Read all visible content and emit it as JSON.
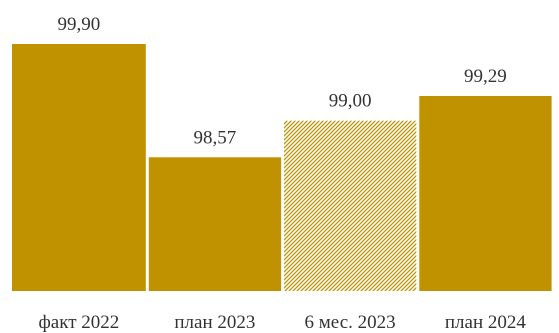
{
  "chart_data": {
    "type": "bar",
    "title": "",
    "xlabel": "",
    "ylabel": "",
    "categories": [
      "факт 2022",
      "план 2023",
      "6 мес. 2023",
      "план 2024"
    ],
    "values": [
      99.9,
      98.57,
      99.0,
      99.29
    ],
    "value_labels": [
      "99,90",
      "98,57",
      "99,00",
      "99,29"
    ],
    "ylim": [
      97.0,
      100.0
    ],
    "grid": false,
    "legend": "none",
    "bar_color": "#C09200",
    "hatch_color": "#C09200",
    "hatched_categories": [
      "6 мес. 2023"
    ]
  }
}
